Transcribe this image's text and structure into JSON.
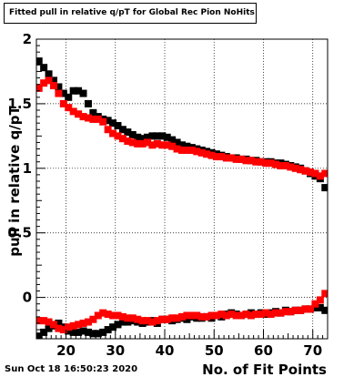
{
  "title": "Fitted pull in relative q/pT for Global Rec Pion NoHits",
  "timestamp": "Sun Oct 18 16:50:23 2020",
  "chart_data": {
    "type": "scatter",
    "title": "Fitted pull in relative q/pT for Global Rec Pion NoHits",
    "xlabel": "No. of Fit Points",
    "ylabel": "pull in relative q/pT",
    "xlim": [
      14,
      73
    ],
    "ylim": [
      -0.32,
      2.0
    ],
    "xticks": [
      20,
      30,
      40,
      50,
      60,
      70
    ],
    "xtick_labels": [
      "20",
      "30",
      "40",
      "50",
      "60",
      "70"
    ],
    "yticks": [
      0,
      0.5,
      1,
      1.5,
      2
    ],
    "ytick_labels": [
      "0",
      "0.5",
      "1",
      "1.5",
      "2"
    ],
    "grid": true,
    "series": [
      {
        "color": "#000000",
        "marker": "square",
        "x": [
          14.5,
          15.5,
          16.5,
          17.5,
          18.5,
          19.5,
          20.5,
          21.5,
          22.5,
          23.5,
          24.5,
          25.5,
          26.5,
          27.5,
          28.5,
          29.5,
          30.5,
          31.5,
          32.5,
          33.5,
          34.5,
          35.5,
          36.5,
          37.5,
          38.5,
          39.5,
          40.5,
          41.5,
          42.5,
          43.5,
          44.5,
          45.5,
          46.5,
          47.5,
          48.5,
          49.5,
          50.5,
          51.5,
          52.5,
          53.5,
          54.5,
          55.5,
          56.5,
          57.5,
          58.5,
          59.5,
          60.5,
          61.5,
          62.5,
          63.5,
          64.5,
          65.5,
          66.5,
          67.5,
          68.5,
          69.5,
          70.5,
          71.5,
          72.5
        ],
        "y": [
          1.83,
          1.78,
          1.73,
          1.68,
          1.63,
          1.58,
          1.55,
          1.6,
          1.6,
          1.58,
          1.5,
          1.43,
          1.4,
          1.38,
          1.37,
          1.35,
          1.33,
          1.3,
          1.28,
          1.26,
          1.24,
          1.23,
          1.24,
          1.25,
          1.25,
          1.25,
          1.24,
          1.22,
          1.2,
          1.18,
          1.17,
          1.16,
          1.15,
          1.14,
          1.13,
          1.12,
          1.11,
          1.1,
          1.09,
          1.08,
          1.08,
          1.07,
          1.07,
          1.06,
          1.06,
          1.05,
          1.05,
          1.05,
          1.04,
          1.04,
          1.03,
          1.02,
          1.01,
          1.0,
          0.98,
          0.96,
          0.94,
          0.92,
          0.85
        ]
      },
      {
        "color": "#ff0000",
        "marker": "square",
        "x": [
          14.5,
          15.5,
          16.5,
          17.5,
          18.5,
          19.5,
          20.5,
          21.5,
          22.5,
          23.5,
          24.5,
          25.5,
          26.5,
          27.5,
          28.5,
          29.5,
          30.5,
          31.5,
          32.5,
          33.5,
          34.5,
          35.5,
          36.5,
          37.5,
          38.5,
          39.5,
          40.5,
          41.5,
          42.5,
          43.5,
          44.5,
          45.5,
          46.5,
          47.5,
          48.5,
          49.5,
          50.5,
          51.5,
          52.5,
          53.5,
          54.5,
          55.5,
          56.5,
          57.5,
          58.5,
          59.5,
          60.5,
          61.5,
          62.5,
          63.5,
          64.5,
          65.5,
          66.5,
          67.5,
          68.5,
          69.5,
          70.5,
          71.5,
          72.5
        ],
        "y": [
          1.62,
          1.66,
          1.68,
          1.64,
          1.58,
          1.5,
          1.47,
          1.44,
          1.42,
          1.4,
          1.39,
          1.38,
          1.38,
          1.36,
          1.3,
          1.27,
          1.25,
          1.23,
          1.21,
          1.2,
          1.19,
          1.19,
          1.2,
          1.18,
          1.19,
          1.18,
          1.18,
          1.17,
          1.15,
          1.14,
          1.14,
          1.14,
          1.13,
          1.12,
          1.11,
          1.1,
          1.09,
          1.09,
          1.08,
          1.08,
          1.07,
          1.07,
          1.06,
          1.06,
          1.05,
          1.05,
          1.04,
          1.04,
          1.03,
          1.02,
          1.02,
          1.01,
          1.0,
          0.99,
          0.98,
          0.97,
          0.96,
          0.94,
          0.96
        ]
      },
      {
        "color": "#000000",
        "marker": "square",
        "x": [
          14.5,
          15.5,
          16.5,
          17.5,
          18.5,
          19.5,
          20.5,
          21.5,
          22.5,
          23.5,
          24.5,
          25.5,
          26.5,
          27.5,
          28.5,
          29.5,
          30.5,
          31.5,
          32.5,
          33.5,
          34.5,
          35.5,
          36.5,
          37.5,
          38.5,
          39.5,
          40.5,
          41.5,
          42.5,
          43.5,
          44.5,
          45.5,
          46.5,
          47.5,
          48.5,
          49.5,
          50.5,
          51.5,
          52.5,
          53.5,
          54.5,
          55.5,
          56.5,
          57.5,
          58.5,
          59.5,
          60.5,
          61.5,
          62.5,
          63.5,
          64.5,
          65.5,
          66.5,
          67.5,
          68.5,
          69.5,
          70.5,
          71.5,
          72.5
        ],
        "y": [
          -0.3,
          -0.27,
          -0.24,
          -0.22,
          -0.2,
          -0.23,
          -0.26,
          -0.27,
          -0.27,
          -0.26,
          -0.27,
          -0.28,
          -0.28,
          -0.27,
          -0.25,
          -0.23,
          -0.21,
          -0.19,
          -0.19,
          -0.18,
          -0.19,
          -0.2,
          -0.19,
          -0.18,
          -0.2,
          -0.17,
          -0.17,
          -0.18,
          -0.17,
          -0.16,
          -0.17,
          -0.15,
          -0.16,
          -0.16,
          -0.15,
          -0.16,
          -0.14,
          -0.15,
          -0.13,
          -0.12,
          -0.13,
          -0.14,
          -0.13,
          -0.12,
          -0.13,
          -0.12,
          -0.13,
          -0.12,
          -0.11,
          -0.12,
          -0.1,
          -0.11,
          -0.1,
          -0.1,
          -0.09,
          -0.09,
          -0.08,
          -0.08,
          -0.1
        ]
      },
      {
        "color": "#ff0000",
        "marker": "square",
        "x": [
          14.5,
          15.5,
          16.5,
          17.5,
          18.5,
          19.5,
          20.5,
          21.5,
          22.5,
          23.5,
          24.5,
          25.5,
          26.5,
          27.5,
          28.5,
          29.5,
          30.5,
          31.5,
          32.5,
          33.5,
          34.5,
          35.5,
          36.5,
          37.5,
          38.5,
          39.5,
          40.5,
          41.5,
          42.5,
          43.5,
          44.5,
          45.5,
          46.5,
          47.5,
          48.5,
          49.5,
          50.5,
          51.5,
          52.5,
          53.5,
          54.5,
          55.5,
          56.5,
          57.5,
          58.5,
          59.5,
          60.5,
          61.5,
          62.5,
          63.5,
          64.5,
          65.5,
          66.5,
          67.5,
          68.5,
          69.5,
          70.5,
          71.5,
          72.5
        ],
        "y": [
          -0.18,
          -0.18,
          -0.19,
          -0.21,
          -0.24,
          -0.25,
          -0.23,
          -0.22,
          -0.21,
          -0.2,
          -0.19,
          -0.17,
          -0.14,
          -0.12,
          -0.13,
          -0.14,
          -0.14,
          -0.15,
          -0.16,
          -0.16,
          -0.17,
          -0.18,
          -0.18,
          -0.19,
          -0.18,
          -0.17,
          -0.17,
          -0.16,
          -0.16,
          -0.15,
          -0.14,
          -0.14,
          -0.14,
          -0.15,
          -0.15,
          -0.14,
          -0.14,
          -0.13,
          -0.14,
          -0.13,
          -0.14,
          -0.14,
          -0.13,
          -0.14,
          -0.13,
          -0.13,
          -0.12,
          -0.13,
          -0.12,
          -0.12,
          -0.11,
          -0.11,
          -0.1,
          -0.1,
          -0.09,
          -0.09,
          -0.05,
          -0.02,
          0.03
        ]
      }
    ]
  }
}
